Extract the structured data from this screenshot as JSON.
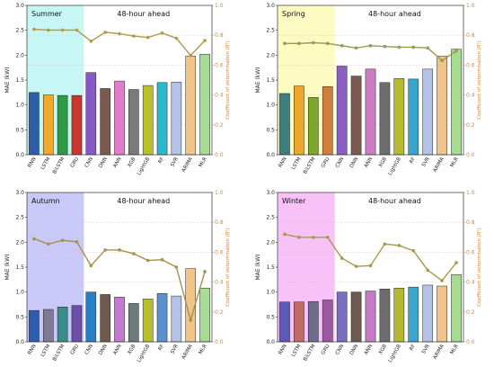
{
  "chart_data": [
    {
      "type": "bar",
      "title": "Summer",
      "subtitle": "48-hour ahead",
      "ylabel": "MAE (kW)",
      "y2label": "Coefficient of determination (R²)",
      "ylim": [
        0,
        3.0
      ],
      "y2lim": [
        0,
        1.0
      ],
      "highlight": {
        "from": "RNN",
        "to": "GRU",
        "color": "#c6f7f5"
      },
      "categories": [
        "RNN",
        "LSTM",
        "BiLSTM",
        "GRU",
        "CNN",
        "DNN",
        "ANN",
        "XGB",
        "LightGB",
        "RF",
        "SVR",
        "ARIMA",
        "MLR"
      ],
      "bar_colors": [
        "#2f5ea8",
        "#f2a92b",
        "#2e9a45",
        "#c7362f",
        "#8659c4",
        "#7d5a4f",
        "#e27cca",
        "#7a7a7a",
        "#b9c12a",
        "#2ab8cc",
        "#b4c2ea",
        "#f2c48a",
        "#a7dd93"
      ],
      "values": [
        1.25,
        1.2,
        1.19,
        1.19,
        1.65,
        1.33,
        1.48,
        1.31,
        1.39,
        1.45,
        1.46,
        1.98,
        2.02
      ],
      "r2": [
        0.84,
        0.835,
        0.835,
        0.835,
        0.76,
        0.82,
        0.81,
        0.795,
        0.785,
        0.815,
        0.78,
        0.665,
        0.765
      ],
      "r2_color": "#b09a4a"
    },
    {
      "type": "bar",
      "title": "Spring",
      "subtitle": "48-hour ahead",
      "ylabel": "MAE (kW)",
      "y2label": "Coefficient of determination (R²)",
      "ylim": [
        0,
        3.0
      ],
      "y2lim": [
        0,
        1.0
      ],
      "highlight": {
        "from": "RNN",
        "to": "GRU",
        "color": "#fbfbc2"
      },
      "categories": [
        "RNN",
        "LSTM",
        "BiLSTM",
        "GRU",
        "CNN",
        "DNN",
        "ANN",
        "XGB",
        "LightGB",
        "RF",
        "SVR",
        "ARIMA",
        "MLR"
      ],
      "bar_colors": [
        "#3e7e80",
        "#f0a628",
        "#7aa82b",
        "#d17e3c",
        "#8b5fc5",
        "#7d5a4f",
        "#cf7bc4",
        "#6d6d6d",
        "#b6bc2e",
        "#36a6cc",
        "#b4c2ea",
        "#f2c48a",
        "#a7dd93"
      ],
      "values": [
        1.23,
        1.38,
        1.15,
        1.37,
        1.78,
        1.58,
        1.72,
        1.45,
        1.53,
        1.52,
        1.72,
        1.98,
        2.12
      ],
      "r2": [
        0.745,
        0.745,
        0.75,
        0.745,
        0.73,
        0.715,
        0.73,
        0.725,
        0.72,
        0.72,
        0.715,
        0.63,
        0.695
      ],
      "r2_color": "#9c9a4c"
    },
    {
      "type": "bar",
      "title": "Autumn",
      "subtitle": "48-hour ahead",
      "ylabel": "MAE (kW)",
      "y2label": "Coefficient of determination (R²)",
      "ylim": [
        0,
        3.0
      ],
      "y2lim": [
        0,
        1.0
      ],
      "highlight": {
        "from": "RNN",
        "to": "GRU",
        "color": "#c9c9f9"
      },
      "categories": [
        "RNN",
        "LSTM",
        "BiLSTM",
        "GRU",
        "CNN",
        "DNN",
        "ANN",
        "XGB",
        "LightGB",
        "RF",
        "SVR",
        "ARIMA",
        "MLR"
      ],
      "bar_colors": [
        "#2d5bb0",
        "#7f7a96",
        "#3b8c8c",
        "#6b4fa8",
        "#2a7ec2",
        "#6e5a4e",
        "#c37bd0",
        "#6d7b7b",
        "#b7be2e",
        "#5a8fd0",
        "#b4c2ea",
        "#f2c48a",
        "#a7dd93"
      ],
      "values": [
        0.63,
        0.65,
        0.7,
        0.73,
        1.0,
        0.95,
        0.9,
        0.77,
        0.86,
        0.97,
        0.92,
        1.47,
        1.08
      ],
      "r2": [
        0.69,
        0.655,
        0.68,
        0.67,
        0.51,
        0.615,
        0.615,
        0.59,
        0.545,
        0.55,
        0.5,
        0.145,
        0.47
      ],
      "r2_color": "#a88f4a"
    },
    {
      "type": "bar",
      "title": "Winter",
      "subtitle": "48-hour ahead",
      "ylabel": "MAE (kW)",
      "y2label": "Coefficient of determination (R²)",
      "ylim": [
        0,
        3.0
      ],
      "y2lim": [
        0,
        1.0
      ],
      "highlight": {
        "from": "RNN",
        "to": "GRU",
        "color": "#f7c2f7"
      },
      "categories": [
        "RNN",
        "LSTM",
        "BiLSTM",
        "GRU",
        "CNN",
        "DNN",
        "ANN",
        "XGB",
        "LightGB",
        "RF",
        "SVR",
        "ARIMA",
        "MLR"
      ],
      "bar_colors": [
        "#5b5ab7",
        "#c26a64",
        "#6d6d8a",
        "#9a5aa0",
        "#7a6ec2",
        "#6e5a4e",
        "#c57bc8",
        "#6d6d6d",
        "#b4b82e",
        "#3aa6cc",
        "#b4c2ea",
        "#f2c48a",
        "#a7dd93"
      ],
      "values": [
        0.8,
        0.8,
        0.81,
        0.84,
        1.0,
        1.0,
        1.02,
        1.06,
        1.08,
        1.1,
        1.14,
        1.12,
        1.35
      ],
      "r2": [
        0.72,
        0.7,
        0.7,
        0.7,
        0.56,
        0.505,
        0.51,
        0.655,
        0.645,
        0.61,
        0.48,
        0.41,
        0.53
      ],
      "r2_color": "#a69a4a"
    }
  ]
}
